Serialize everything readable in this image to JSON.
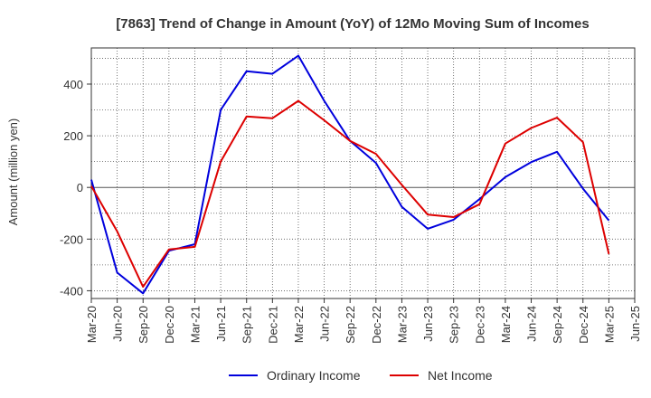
{
  "chart_data": {
    "type": "line",
    "title": "[7863]  Trend of Change in Amount (YoY) of 12Mo Moving Sum of Incomes",
    "xlabel": "",
    "ylabel": "Amount (million yen)",
    "x": [
      "Mar-20",
      "Jun-20",
      "Sep-20",
      "Dec-20",
      "Mar-21",
      "Jun-21",
      "Sep-21",
      "Dec-21",
      "Mar-22",
      "Jun-22",
      "Sep-22",
      "Dec-22",
      "Mar-23",
      "Jun-23",
      "Sep-23",
      "Dec-23",
      "Mar-24",
      "Jun-24",
      "Sep-24",
      "Dec-24",
      "Mar-25",
      "Jun-25"
    ],
    "ylim": [
      -430,
      540
    ],
    "yticks": [
      -400,
      -200,
      0,
      200,
      400
    ],
    "ytick_labels": [
      "-400",
      "-200",
      "0",
      "200",
      "400"
    ],
    "grid": true,
    "legend_position": "bottom",
    "series": [
      {
        "name": "Ordinary Income",
        "color": "#0000dd",
        "values": [
          30,
          -330,
          -410,
          -245,
          -220,
          300,
          450,
          440,
          510,
          335,
          180,
          95,
          -75,
          -160,
          -125,
          -45,
          40,
          98,
          138,
          -5,
          -128,
          null
        ]
      },
      {
        "name": "Net Income",
        "color": "#dd0000",
        "values": [
          5,
          -170,
          -385,
          -240,
          -230,
          100,
          275,
          268,
          335,
          260,
          180,
          130,
          10,
          -105,
          -115,
          -65,
          170,
          230,
          270,
          175,
          -258,
          null
        ]
      }
    ]
  }
}
